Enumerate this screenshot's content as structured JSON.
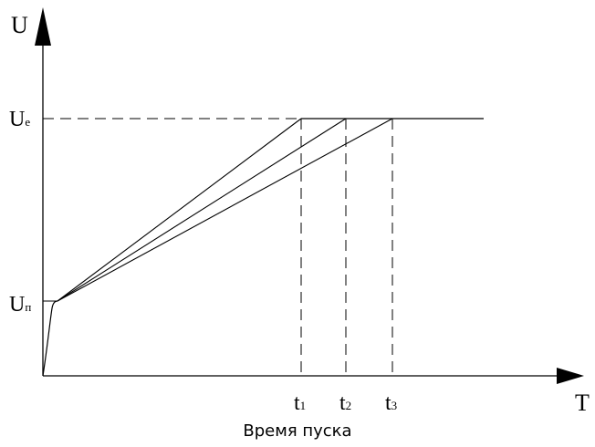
{
  "axes": {
    "y_label": "U",
    "x_label": "T"
  },
  "levels": {
    "ue": {
      "main": "U",
      "sub": "e"
    },
    "un": {
      "main": "U",
      "sub": "п"
    }
  },
  "times": [
    {
      "main": "t",
      "sub": "1"
    },
    {
      "main": "t",
      "sub": "2"
    },
    {
      "main": "t",
      "sub": "3"
    }
  ],
  "caption": "Время пуска"
}
